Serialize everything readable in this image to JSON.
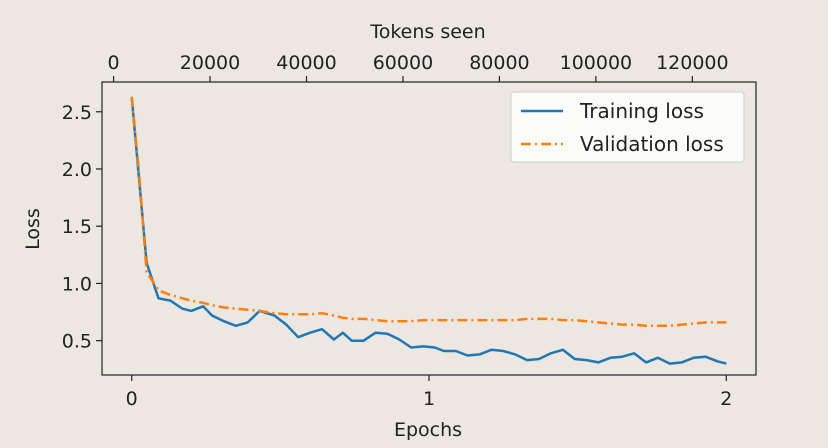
{
  "chart_data": {
    "type": "line",
    "xlabel": "Epochs",
    "ylabel": "Loss",
    "top_xlabel": "Tokens seen",
    "xlim": [
      -0.1,
      2.1
    ],
    "ylim": [
      0.2,
      2.76
    ],
    "top_xlim": [
      -2400,
      133200
    ],
    "x_ticks": [
      0,
      1,
      2
    ],
    "x_tick_labels": [
      "0",
      "1",
      "2"
    ],
    "y_ticks": [
      0.5,
      1.0,
      1.5,
      2.0,
      2.5
    ],
    "y_tick_labels": [
      "0.5",
      "1.0",
      "1.5",
      "2.0",
      "2.5"
    ],
    "top_ticks": [
      0,
      20000,
      40000,
      60000,
      80000,
      100000,
      120000
    ],
    "top_tick_labels": [
      "0",
      "20000",
      "40000",
      "60000",
      "80000",
      "100000",
      "120000"
    ],
    "grid": false,
    "legend_position": "top-right",
    "series": [
      {
        "name": "Training loss",
        "color": "#1f77b4",
        "style": "solid",
        "x": [
          0,
          0.025,
          0.05,
          0.09,
          0.13,
          0.17,
          0.2,
          0.24,
          0.27,
          0.31,
          0.35,
          0.39,
          0.43,
          0.48,
          0.52,
          0.56,
          0.6,
          0.64,
          0.68,
          0.71,
          0.74,
          0.78,
          0.82,
          0.86,
          0.9,
          0.94,
          0.98,
          1.02,
          1.05,
          1.09,
          1.13,
          1.17,
          1.21,
          1.25,
          1.29,
          1.33,
          1.37,
          1.41,
          1.45,
          1.49,
          1.53,
          1.57,
          1.61,
          1.65,
          1.69,
          1.73,
          1.77,
          1.81,
          1.85,
          1.89,
          1.93,
          1.97,
          2.0
        ],
        "y": [
          2.63,
          1.9,
          1.18,
          0.87,
          0.85,
          0.78,
          0.76,
          0.8,
          0.72,
          0.67,
          0.63,
          0.66,
          0.76,
          0.72,
          0.64,
          0.53,
          0.57,
          0.6,
          0.51,
          0.57,
          0.5,
          0.5,
          0.57,
          0.56,
          0.51,
          0.44,
          0.45,
          0.44,
          0.41,
          0.41,
          0.37,
          0.38,
          0.42,
          0.41,
          0.38,
          0.33,
          0.34,
          0.39,
          0.42,
          0.34,
          0.33,
          0.31,
          0.35,
          0.36,
          0.39,
          0.31,
          0.35,
          0.3,
          0.31,
          0.35,
          0.36,
          0.32,
          0.3
        ]
      },
      {
        "name": "Validation loss",
        "color": "#ff7f0e",
        "style": "dashdot",
        "x": [
          0,
          0.025,
          0.05,
          0.09,
          0.13,
          0.17,
          0.2,
          0.24,
          0.27,
          0.31,
          0.35,
          0.39,
          0.43,
          0.48,
          0.52,
          0.56,
          0.6,
          0.64,
          0.68,
          0.71,
          0.74,
          0.78,
          0.82,
          0.86,
          0.9,
          0.94,
          0.98,
          1.02,
          1.05,
          1.09,
          1.13,
          1.17,
          1.21,
          1.25,
          1.29,
          1.33,
          1.37,
          1.41,
          1.45,
          1.49,
          1.53,
          1.57,
          1.61,
          1.65,
          1.69,
          1.73,
          1.77,
          1.81,
          1.85,
          1.89,
          1.93,
          1.97,
          2.0
        ],
        "y": [
          2.63,
          1.95,
          1.1,
          0.94,
          0.9,
          0.87,
          0.85,
          0.83,
          0.81,
          0.79,
          0.78,
          0.77,
          0.76,
          0.74,
          0.73,
          0.73,
          0.73,
          0.74,
          0.72,
          0.7,
          0.69,
          0.69,
          0.68,
          0.67,
          0.67,
          0.67,
          0.68,
          0.68,
          0.68,
          0.68,
          0.68,
          0.68,
          0.68,
          0.68,
          0.68,
          0.69,
          0.69,
          0.69,
          0.68,
          0.68,
          0.67,
          0.66,
          0.65,
          0.64,
          0.64,
          0.63,
          0.63,
          0.63,
          0.64,
          0.65,
          0.66,
          0.66,
          0.66
        ]
      }
    ]
  }
}
